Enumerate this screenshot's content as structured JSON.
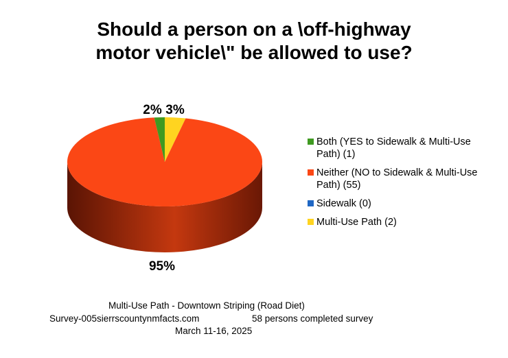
{
  "chart_data": {
    "type": "pie",
    "title_lines": [
      "Should a person on a \\off-highway",
      "motor vehicle\\\" be allowed to use?"
    ],
    "slices": [
      {
        "label": "Both (YES to Sidewalk & Multi-Use Path) (1)",
        "value": 1,
        "percent_label": "2%",
        "color": "#3f9a21"
      },
      {
        "label": "Neither (NO to Sidewalk & Multi-Use Path) (55)",
        "value": 55,
        "percent_label": "95%",
        "color": "#fb4715"
      },
      {
        "label": "Sidewalk (0)",
        "value": 0,
        "percent_label": "",
        "color": "#1f67c4"
      },
      {
        "label": "Multi-Use Path (2)",
        "value": 2,
        "percent_label": "3%",
        "color": "#ffd420"
      }
    ],
    "legend_placement": "right"
  },
  "footer": {
    "line1": "Multi-Use Path - Downtown Striping (Road Diet)",
    "line2_left": "Survey-005sierrscountynmfacts.com",
    "line2_right": "58 persons completed survey",
    "line3": "March 11-16, 2025"
  }
}
